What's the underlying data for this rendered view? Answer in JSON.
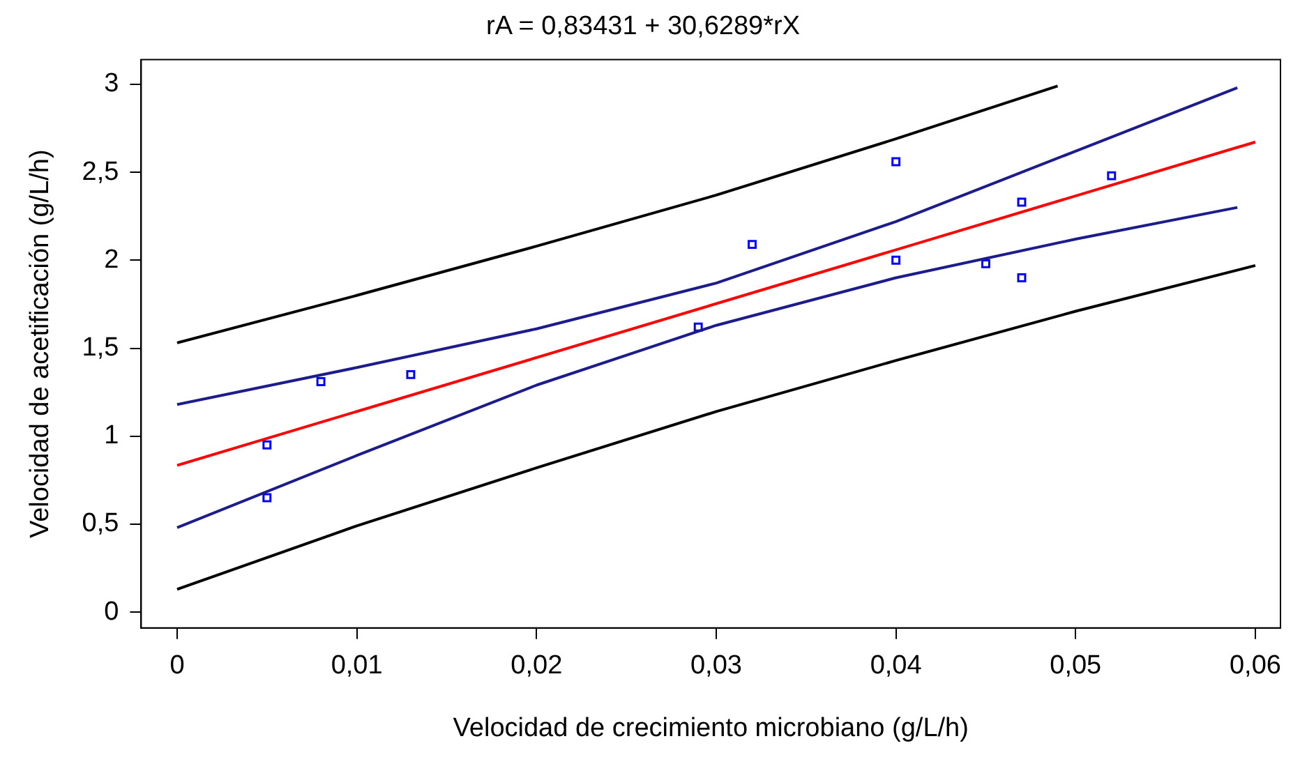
{
  "chart_data": {
    "type": "scatter",
    "title": "rA = 0,83431 + 30,6289*rX",
    "xlabel": "Velocidad de crecimiento microbiano (g/L/h)",
    "ylabel": "Velocidad de acetificación (g/L/h)",
    "xlim": [
      -0.002,
      0.0614
    ],
    "ylim": [
      -0.09,
      3.14
    ],
    "xticks": [
      0,
      {
        "value": 0.01,
        "label": "0,01"
      },
      {
        "value": 0.02,
        "label": "0,02"
      },
      {
        "value": 0.03,
        "label": "0,03"
      },
      {
        "value": 0.04,
        "label": "0,04"
      },
      {
        "value": 0.05,
        "label": "0,05"
      },
      {
        "value": 0.06,
        "label": "0,06"
      }
    ],
    "yticks": [
      0,
      {
        "value": 0.5,
        "label": "0,5"
      },
      1,
      {
        "value": 1.5,
        "label": "1,5"
      },
      2,
      {
        "value": 2.5,
        "label": "2,5"
      },
      3
    ],
    "grid": false,
    "legend": false,
    "series": [
      {
        "type": "line",
        "color": "#000000",
        "marker": "none",
        "x": [
          0,
          0.01,
          0.02,
          0.03,
          0.04,
          0.049
        ],
        "values": [
          1.53,
          1.8,
          2.08,
          2.37,
          2.69,
          2.99
        ]
      },
      {
        "type": "line",
        "color": "#000000",
        "marker": "none",
        "x": [
          0,
          0.01,
          0.02,
          0.03,
          0.04,
          0.05,
          0.06
        ],
        "values": [
          0.13,
          0.49,
          0.82,
          1.14,
          1.43,
          1.71,
          1.97
        ]
      },
      {
        "type": "line",
        "color": "#1c1c8c",
        "marker": "none",
        "x": [
          0,
          0.01,
          0.02,
          0.03,
          0.04,
          0.05,
          0.059
        ],
        "values": [
          1.18,
          1.39,
          1.61,
          1.87,
          2.22,
          2.62,
          2.98
        ]
      },
      {
        "type": "line",
        "color": "#1c1c8c",
        "marker": "none",
        "x": [
          0,
          0.01,
          0.02,
          0.03,
          0.04,
          0.05,
          0.059
        ],
        "values": [
          0.48,
          0.89,
          1.29,
          1.63,
          1.9,
          2.12,
          2.3
        ]
      },
      {
        "type": "line",
        "color": "#ff0000",
        "marker": "none",
        "x": [
          0,
          0.06
        ],
        "values": [
          0.834,
          2.672
        ]
      },
      {
        "type": "scatter",
        "color": "#0000ff",
        "marker": "square",
        "x": [
          0.005,
          0.005,
          0.008,
          0.013,
          0.029,
          0.032,
          0.04,
          0.04,
          0.045,
          0.047,
          0.047,
          0.052
        ],
        "values": [
          0.65,
          0.95,
          1.31,
          1.35,
          1.62,
          2.09,
          2.56,
          2.0,
          1.98,
          2.33,
          1.9,
          2.48
        ]
      }
    ]
  }
}
